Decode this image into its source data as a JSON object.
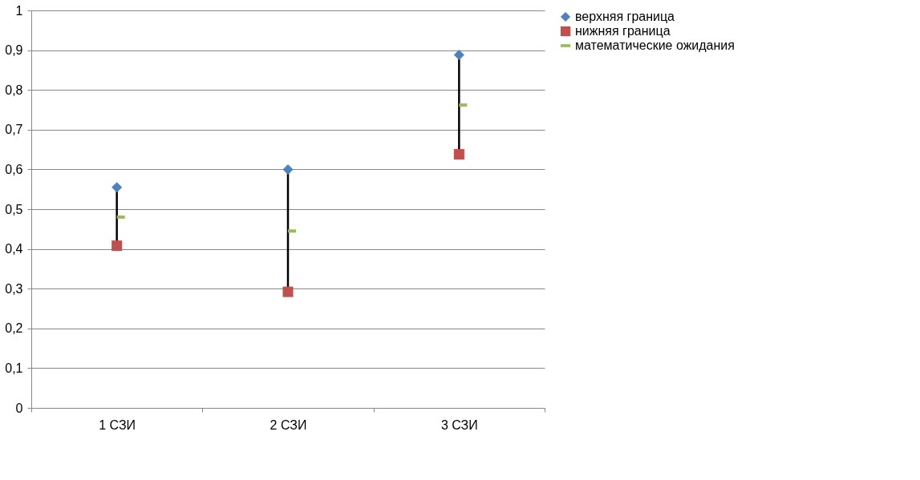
{
  "chart_data": {
    "type": "scatter",
    "categories": [
      "1  СЗИ",
      "2 СЗИ",
      "3 СЗИ"
    ],
    "series": [
      {
        "name": "верхняя граница",
        "color": "#4f81bd",
        "marker": "diamond",
        "values": [
          0.555,
          0.6,
          0.888
        ]
      },
      {
        "name": "нижняя граница",
        "color": "#c0504d",
        "marker": "square",
        "values": [
          0.408,
          0.292,
          0.638
        ]
      },
      {
        "name": "математические ожидания",
        "color": "#9bbb59",
        "values": [
          0.48,
          0.445,
          0.762
        ]
      }
    ],
    "ylim": [
      0,
      1
    ],
    "yticks": [
      0,
      {
        "value": 0.1,
        "label": "0,1"
      },
      {
        "value": 0.2,
        "label": "0,2"
      },
      {
        "value": 0.3,
        "label": "0,3"
      },
      {
        "value": 0.4,
        "label": "0,4"
      },
      {
        "value": 0.5,
        "label": "0,5"
      },
      {
        "value": 0.6,
        "label": "0,6"
      },
      {
        "value": 0.7,
        "label": "0,7"
      },
      {
        "value": 0.8,
        "label": "0,8"
      },
      {
        "value": 0.9,
        "label": "0,9"
      },
      1
    ],
    "grid": "y",
    "legend": "right"
  }
}
